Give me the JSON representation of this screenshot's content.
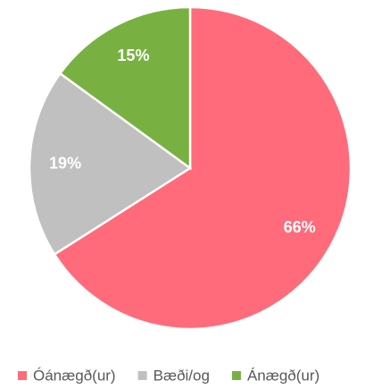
{
  "chart_data": {
    "type": "pie",
    "categories": [
      "Óánægð(ur)",
      "Bæði/og",
      "Ánægð(ur)"
    ],
    "values": [
      66,
      19,
      15
    ],
    "value_labels": [
      "66%",
      "19%",
      "15%"
    ],
    "colors": [
      "#ff6b7b",
      "#c0c0c0",
      "#78b142"
    ],
    "legend": "bottom"
  }
}
